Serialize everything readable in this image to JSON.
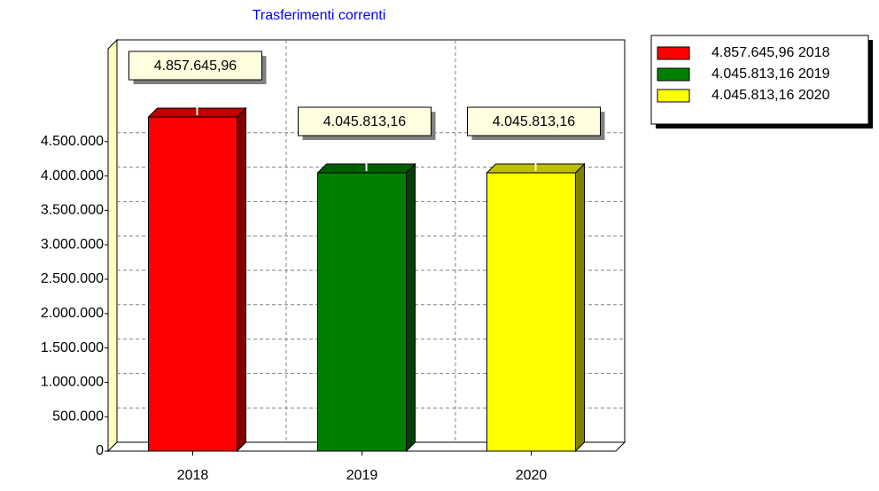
{
  "chart_data": {
    "type": "bar3d",
    "title": "Trasferimenti correnti",
    "categories": [
      "2018",
      "2019",
      "2020"
    ],
    "values": [
      4857645.96,
      4045813.16,
      4045813.16
    ],
    "value_labels": [
      "4.857.645,96",
      "4.045.813,16",
      "4.045.813,16"
    ],
    "colors": [
      "#ff0000",
      "#008000",
      "#ffff00"
    ],
    "ylim": [
      0,
      5850000
    ],
    "yticks": [
      0,
      {
        "value": 500000,
        "label": "500.000"
      },
      {
        "value": 1000000,
        "label": "1.000.000"
      },
      {
        "value": 1500000,
        "label": "1.500.000"
      },
      {
        "value": 2000000,
        "label": "2.000.000"
      },
      {
        "value": 2500000,
        "label": "2.500.000"
      },
      {
        "value": 3000000,
        "label": "3.000.000"
      },
      {
        "value": 3500000,
        "label": "3.500.000"
      },
      {
        "value": 4000000,
        "label": "4.000.000"
      },
      {
        "value": 4500000,
        "label": "4.500.000"
      }
    ],
    "grid": true,
    "legend": "top-right"
  }
}
